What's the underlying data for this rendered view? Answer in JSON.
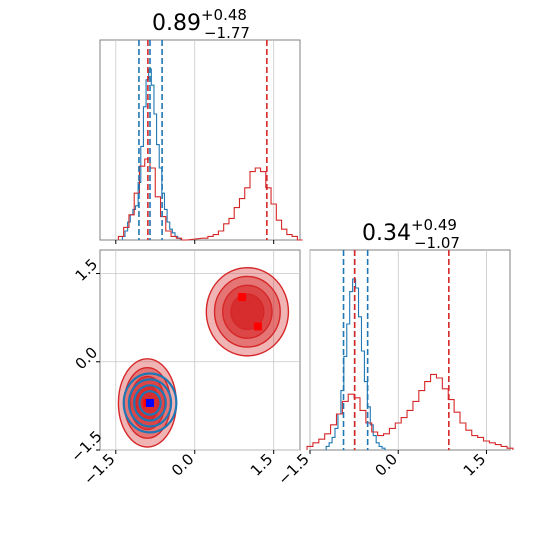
{
  "chart_data": [
    {
      "type": "histogram",
      "panel": "marginal-param-1",
      "title_main": "0.89",
      "title_sup": "+0.48",
      "title_sub": "−1.77",
      "xlim": [
        -1.8,
        2.0
      ],
      "grid": true,
      "series": [
        {
          "name": "",
          "color": "#1f77b4",
          "quantiles": [
            -1.06,
            -0.85,
            -0.62
          ],
          "bins": [
            [
              -1.35,
              0.02
            ],
            [
              -1.3,
              0.05
            ],
            [
              -1.25,
              0.1
            ],
            [
              -1.2,
              0.14
            ],
            [
              -1.15,
              0.17
            ],
            [
              -1.1,
              0.19
            ],
            [
              -1.05,
              0.32
            ],
            [
              -1.0,
              0.52
            ],
            [
              -0.95,
              0.74
            ],
            [
              -0.9,
              0.89
            ],
            [
              -0.85,
              0.95
            ],
            [
              -0.8,
              0.86
            ],
            [
              -0.75,
              0.7
            ],
            [
              -0.7,
              0.53
            ],
            [
              -0.65,
              0.4
            ],
            [
              -0.6,
              0.26
            ],
            [
              -0.55,
              0.17
            ],
            [
              -0.5,
              0.1
            ],
            [
              -0.45,
              0.06
            ],
            [
              -0.4,
              0.04
            ],
            [
              -0.35,
              0.02
            ],
            [
              -0.3,
              0.01
            ]
          ]
        },
        {
          "name": "",
          "color": "#d62728",
          "quantiles": [
            -0.89,
            1.37
          ],
          "bins": [
            [
              -1.4,
              0.02
            ],
            [
              -1.3,
              0.07
            ],
            [
              -1.2,
              0.14
            ],
            [
              -1.1,
              0.26
            ],
            [
              -1.0,
              0.41
            ],
            [
              -0.9,
              0.45
            ],
            [
              -0.8,
              0.4
            ],
            [
              -0.7,
              0.24
            ],
            [
              -0.6,
              0.13
            ],
            [
              -0.5,
              0.05
            ],
            [
              -0.4,
              0.02
            ],
            [
              -0.3,
              0.01
            ],
            [
              -0.2,
              0.0
            ],
            [
              0.2,
              0.01
            ],
            [
              0.3,
              0.02
            ],
            [
              0.4,
              0.03
            ],
            [
              0.5,
              0.05
            ],
            [
              0.6,
              0.09
            ],
            [
              0.7,
              0.12
            ],
            [
              0.8,
              0.18
            ],
            [
              0.9,
              0.23
            ],
            [
              1.0,
              0.29
            ],
            [
              1.1,
              0.38
            ],
            [
              1.2,
              0.4
            ],
            [
              1.3,
              0.38
            ],
            [
              1.4,
              0.29
            ],
            [
              1.5,
              0.2
            ],
            [
              1.6,
              0.11
            ],
            [
              1.7,
              0.06
            ],
            [
              1.8,
              0.03
            ],
            [
              1.9,
              0.02
            ],
            [
              2.0,
              0.0
            ]
          ]
        }
      ]
    },
    {
      "type": "contour-2d",
      "panel": "joint-param-1-param-2",
      "xlim": [
        -1.8,
        2.0
      ],
      "ylim": [
        -1.5,
        1.9
      ],
      "xticks": [
        "−1.5",
        "0.0",
        "1.5"
      ],
      "yticks": [
        "−1.5",
        "0.0",
        "1.5"
      ],
      "grid": true,
      "series": [
        {
          "name": "",
          "color": "#d62728",
          "markers": [
            [
              -0.9,
              -0.7
            ],
            [
              0.9,
              1.1
            ],
            [
              1.2,
              0.6
            ]
          ],
          "blobs": [
            {
              "cx": -0.9,
              "cy": -0.7,
              "rx": 0.55,
              "ry": 0.75
            },
            {
              "cx": 1.0,
              "cy": 0.85,
              "rx": 0.78,
              "ry": 0.75
            }
          ]
        },
        {
          "name": "",
          "color": "#1f77b4",
          "markers": [
            [
              -0.85,
              -0.7
            ]
          ],
          "blobs": [
            {
              "cx": -0.85,
              "cy": -0.7,
              "rx": 0.5,
              "ry": 0.5
            }
          ]
        }
      ]
    },
    {
      "type": "histogram",
      "panel": "marginal-param-2",
      "title_main": "0.34",
      "title_sup": "+0.49",
      "title_sub": "−1.07",
      "xlim": [
        -1.5,
        1.9
      ],
      "xticks": [
        "−1.5",
        "0.0",
        "1.5"
      ],
      "grid": true,
      "series": [
        {
          "name": "",
          "color": "#1f77b4",
          "quantiles": [
            -0.93,
            -0.74,
            -0.52
          ],
          "bins": [
            [
              -1.2,
              0.02
            ],
            [
              -1.15,
              0.04
            ],
            [
              -1.1,
              0.07
            ],
            [
              -1.05,
              0.12
            ],
            [
              -1.0,
              0.2
            ],
            [
              -0.95,
              0.33
            ],
            [
              -0.9,
              0.52
            ],
            [
              -0.85,
              0.7
            ],
            [
              -0.8,
              0.88
            ],
            [
              -0.75,
              0.95
            ],
            [
              -0.7,
              0.9
            ],
            [
              -0.65,
              0.74
            ],
            [
              -0.6,
              0.55
            ],
            [
              -0.55,
              0.38
            ],
            [
              -0.5,
              0.24
            ],
            [
              -0.45,
              0.14
            ],
            [
              -0.4,
              0.08
            ],
            [
              -0.35,
              0.04
            ],
            [
              -0.3,
              0.02
            ],
            [
              -0.25,
              0.01
            ]
          ]
        },
        {
          "name": "",
          "color": "#d62728",
          "quantiles": [
            -0.74,
            0.86
          ],
          "bins": [
            [
              -1.5,
              0.02
            ],
            [
              -1.4,
              0.04
            ],
            [
              -1.3,
              0.06
            ],
            [
              -1.2,
              0.09
            ],
            [
              -1.1,
              0.14
            ],
            [
              -1.0,
              0.2
            ],
            [
              -0.9,
              0.27
            ],
            [
              -0.8,
              0.31
            ],
            [
              -0.7,
              0.29
            ],
            [
              -0.6,
              0.22
            ],
            [
              -0.5,
              0.15
            ],
            [
              -0.4,
              0.1
            ],
            [
              -0.3,
              0.08
            ],
            [
              -0.2,
              0.09
            ],
            [
              -0.1,
              0.12
            ],
            [
              0.0,
              0.15
            ],
            [
              0.1,
              0.18
            ],
            [
              0.2,
              0.22
            ],
            [
              0.3,
              0.27
            ],
            [
              0.4,
              0.33
            ],
            [
              0.5,
              0.38
            ],
            [
              0.6,
              0.42
            ],
            [
              0.7,
              0.4
            ],
            [
              0.8,
              0.34
            ],
            [
              0.9,
              0.28
            ],
            [
              1.0,
              0.21
            ],
            [
              1.1,
              0.15
            ],
            [
              1.2,
              0.11
            ],
            [
              1.3,
              0.08
            ],
            [
              1.4,
              0.07
            ],
            [
              1.5,
              0.05
            ],
            [
              1.6,
              0.04
            ],
            [
              1.7,
              0.03
            ],
            [
              1.8,
              0.02
            ],
            [
              1.9,
              0.01
            ]
          ]
        }
      ]
    }
  ]
}
